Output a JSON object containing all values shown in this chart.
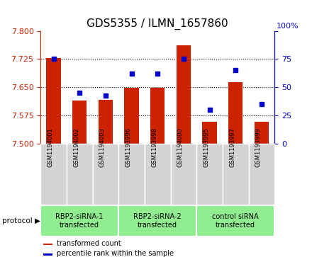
{
  "title": "GDS5355 / ILMN_1657860",
  "samples": [
    "GSM1194001",
    "GSM1194002",
    "GSM1194003",
    "GSM1193996",
    "GSM1193998",
    "GSM1194000",
    "GSM1193995",
    "GSM1193997",
    "GSM1193999"
  ],
  "transformed_counts": [
    7.727,
    7.615,
    7.617,
    7.648,
    7.648,
    7.762,
    7.558,
    7.663,
    7.558
  ],
  "percentile_ranks": [
    75,
    45,
    43,
    62,
    62,
    75,
    30,
    65,
    35
  ],
  "groups": [
    {
      "label": "RBP2-siRNA-1\ntransfected",
      "indices": [
        0,
        1,
        2
      ]
    },
    {
      "label": "RBP2-siRNA-2\ntransfected",
      "indices": [
        3,
        4,
        5
      ]
    },
    {
      "label": "control siRNA\ntransfected",
      "indices": [
        6,
        7,
        8
      ]
    }
  ],
  "ylim_left": [
    7.5,
    7.8
  ],
  "ylim_right": [
    0,
    100
  ],
  "yticks_left": [
    7.5,
    7.575,
    7.65,
    7.725,
    7.8
  ],
  "yticks_right": [
    0,
    25,
    50,
    75,
    100
  ],
  "bar_color": "#CC2200",
  "dot_color": "#0000CC",
  "bar_bottom": 7.5,
  "gray_color": "#D3D3D3",
  "green_color": "#90EE90",
  "title_fontsize": 11,
  "legend_label1": "transformed count",
  "legend_label2": "percentile rank within the sample",
  "protocol_label": "protocol"
}
